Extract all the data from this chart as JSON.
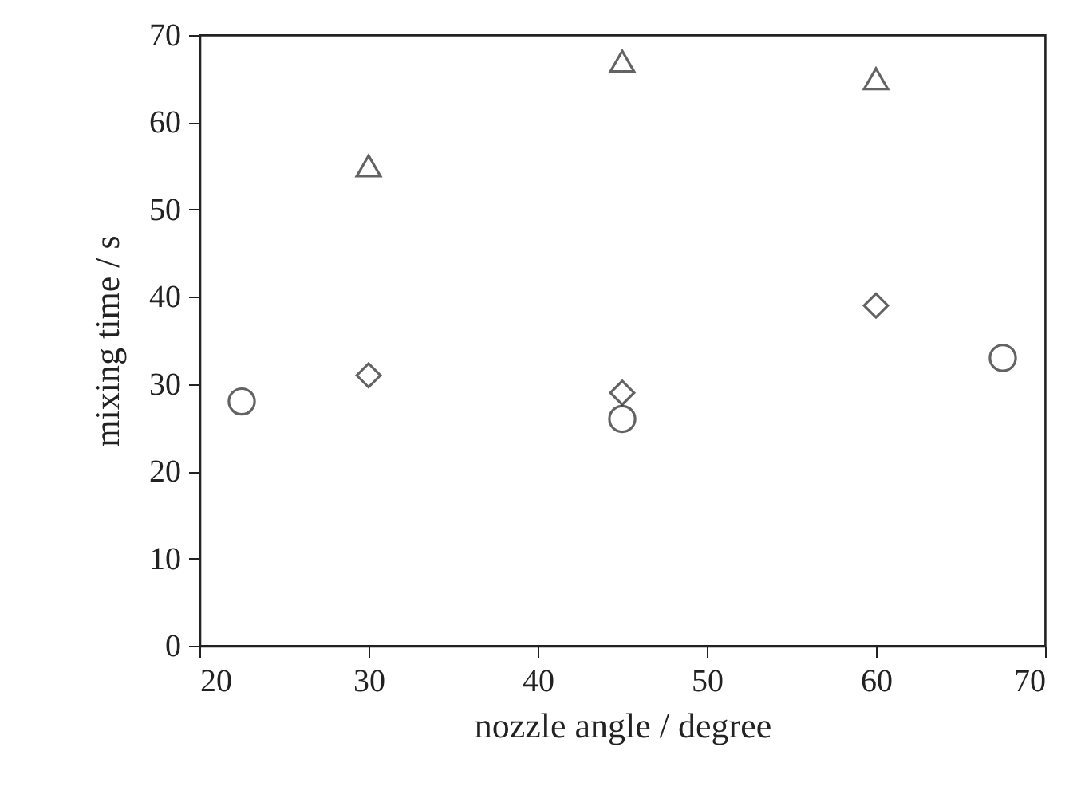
{
  "chart_data": {
    "type": "scatter",
    "xlabel": "nozzle angle / degree",
    "ylabel": "mixing time / s",
    "xlim": [
      20,
      70
    ],
    "ylim": [
      0,
      70
    ],
    "xticks": [
      20,
      30,
      40,
      50,
      60,
      70
    ],
    "yticks": [
      0,
      10,
      20,
      30,
      40,
      50,
      60,
      70
    ],
    "series": [
      {
        "marker": "circle",
        "color": "#222222",
        "x": [
          22.5,
          45,
          67.5
        ],
        "values": [
          28,
          26,
          33
        ]
      },
      {
        "marker": "diamond",
        "color": "#222222",
        "x": [
          30,
          45,
          60
        ],
        "values": [
          31,
          29,
          39
        ]
      },
      {
        "marker": "triangle",
        "color": "#222222",
        "x": [
          30,
          45,
          60
        ],
        "values": [
          55,
          67,
          65
        ]
      }
    ]
  }
}
